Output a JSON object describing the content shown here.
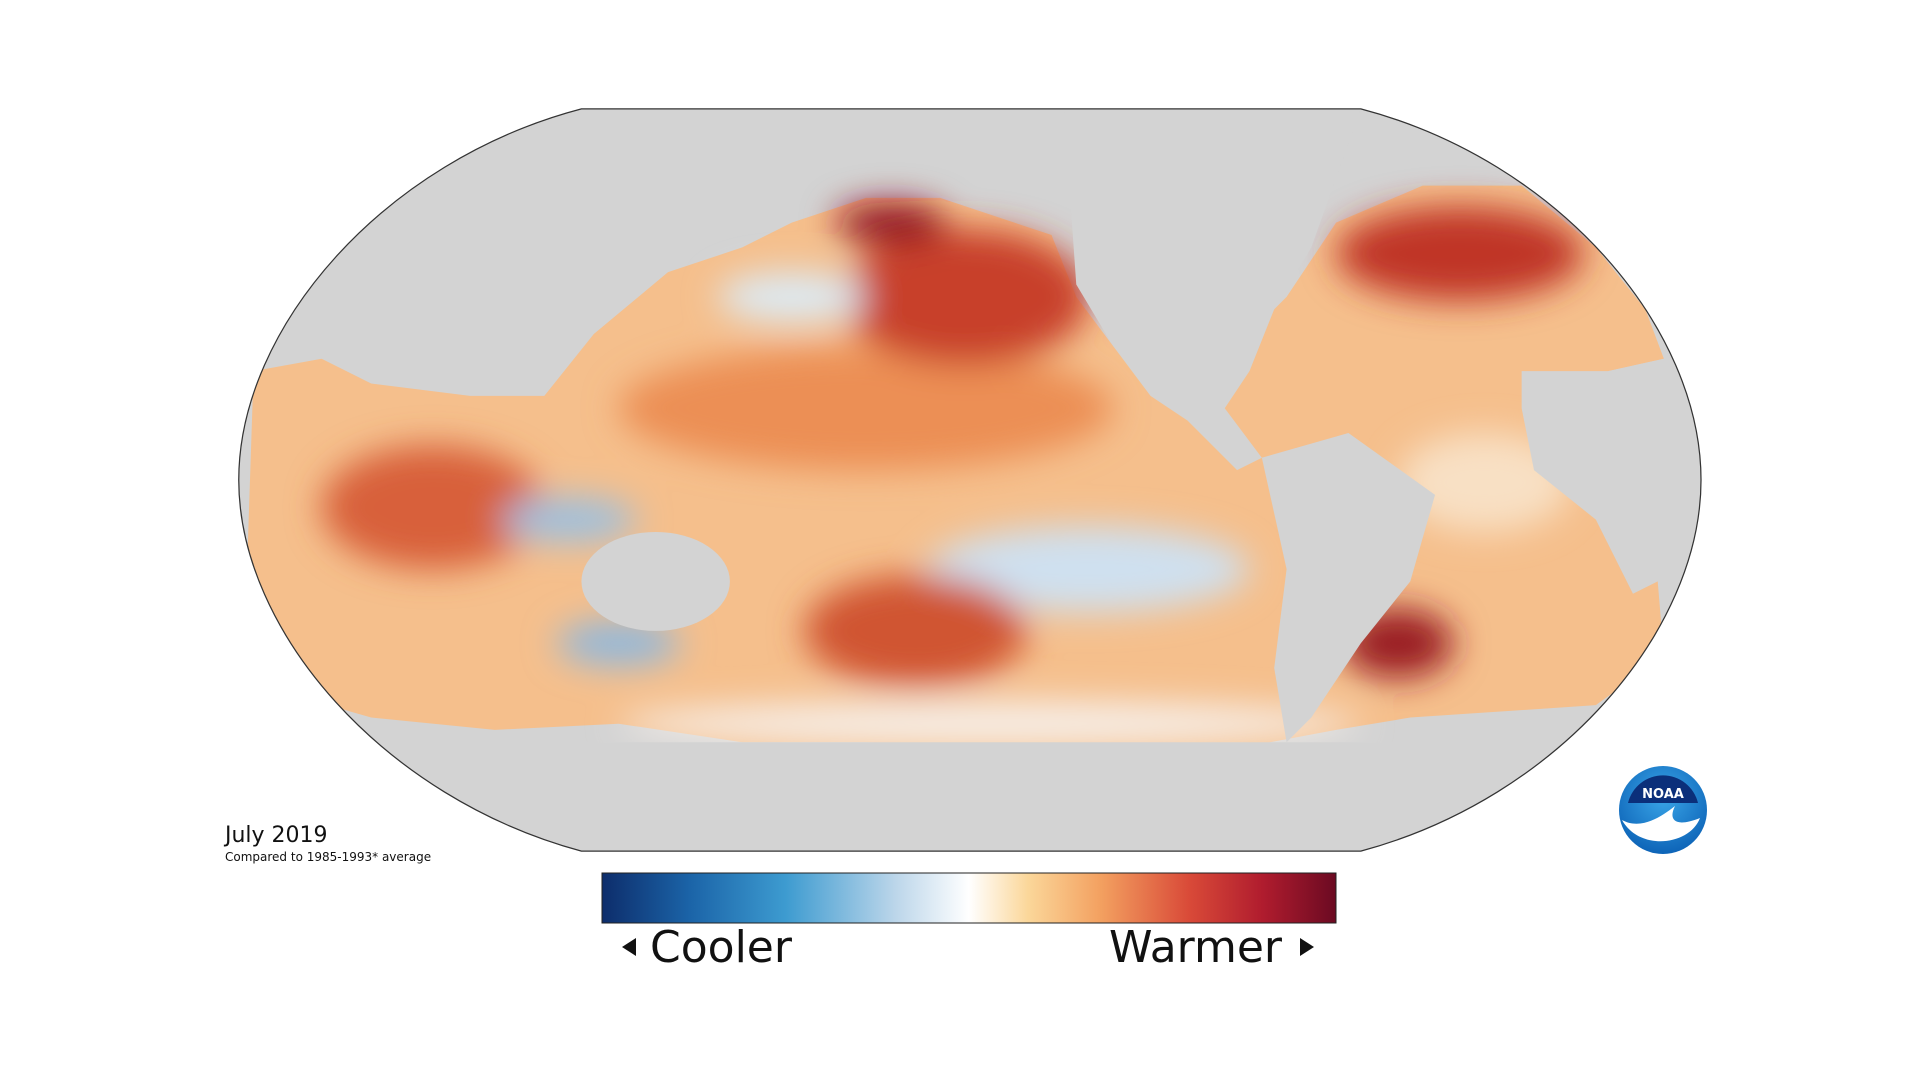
{
  "title": "July 2019",
  "subtitle": "Compared to 1985-1993* average",
  "legend": {
    "low_label": "Cooler",
    "high_label": "Warmer"
  },
  "logo": {
    "text": "NOAA"
  }
}
